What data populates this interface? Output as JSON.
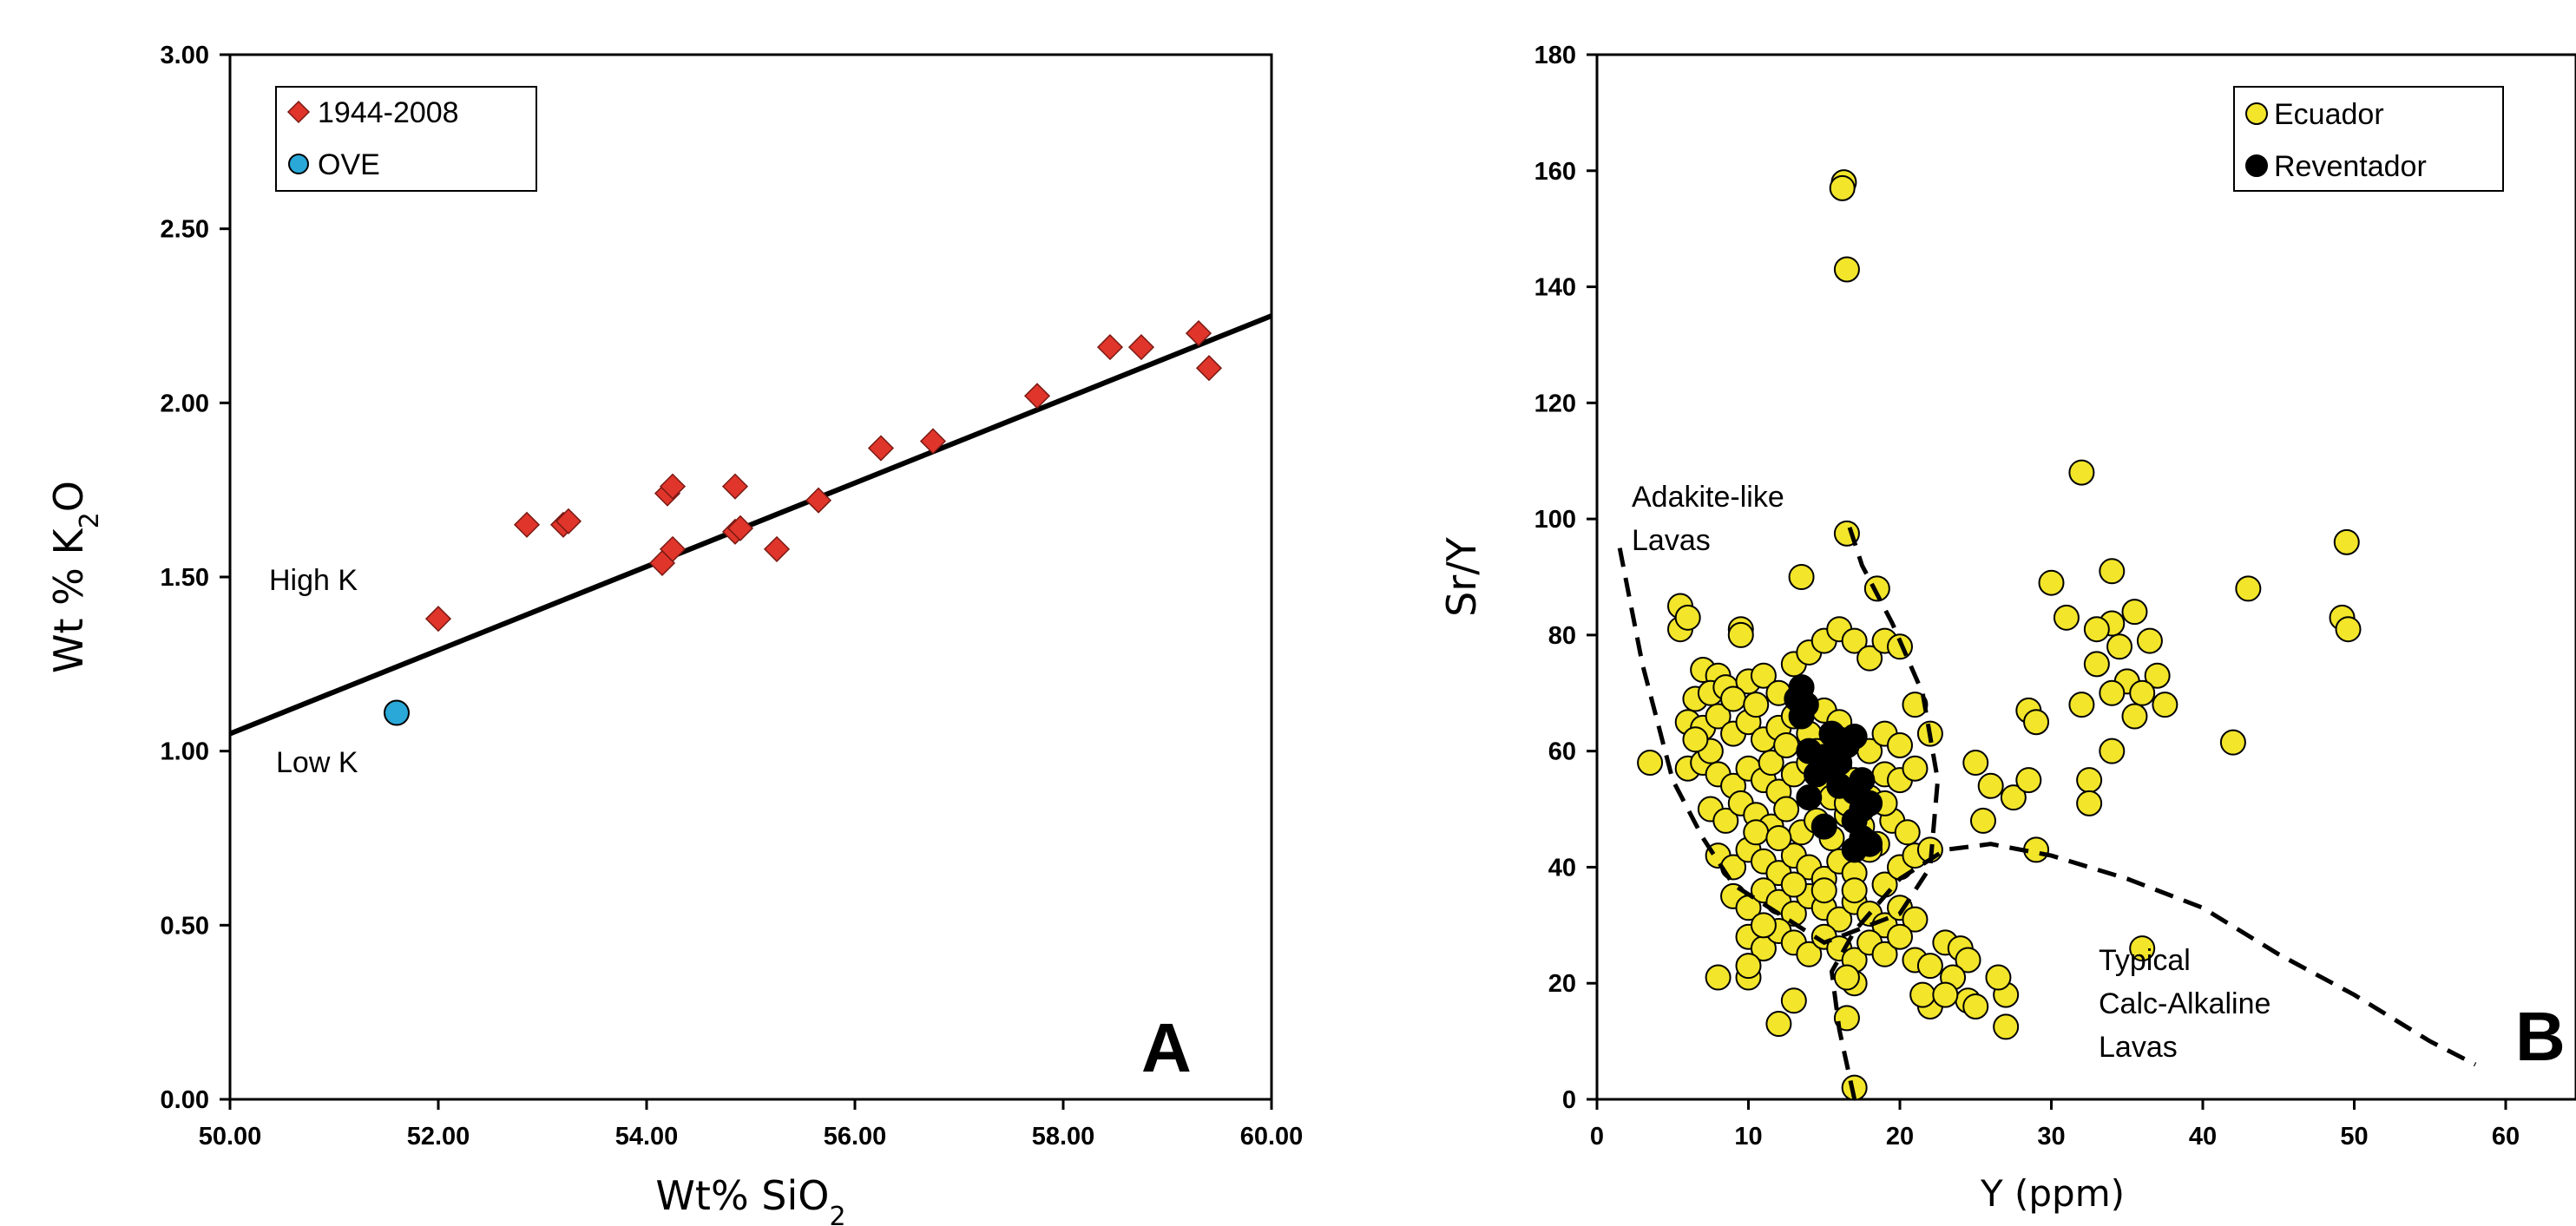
{
  "chart_data": [
    {
      "type": "scatter",
      "panel_label": "A",
      "xlabel": "Wt% SiO",
      "xlabel_sub": "2",
      "ylabel_prefix": "Wt % K",
      "ylabel_sub": "2",
      "ylabel_suffix": "O",
      "xlim": [
        50,
        60
      ],
      "ylim": [
        0,
        3
      ],
      "x_ticks": [
        "50.00",
        "52.00",
        "54.00",
        "56.00",
        "58.00",
        "60.00"
      ],
      "y_ticks": [
        "0.00",
        "0.50",
        "1.00",
        "1.50",
        "2.00",
        "2.50",
        "3.00"
      ],
      "grid": false,
      "legend_position": "top-left",
      "annotations": [
        "High K",
        "Low K"
      ],
      "divider_line": {
        "x": [
          50,
          60
        ],
        "y": [
          1.05,
          2.25
        ]
      },
      "series": [
        {
          "name": "1944-2008",
          "marker": "diamond",
          "color": "#e0352b",
          "points": [
            [
              52.0,
              1.38
            ],
            [
              52.85,
              1.65
            ],
            [
              53.2,
              1.65
            ],
            [
              53.25,
              1.66
            ],
            [
              54.15,
              1.54
            ],
            [
              54.2,
              1.74
            ],
            [
              54.25,
              1.58
            ],
            [
              54.25,
              1.76
            ],
            [
              54.85,
              1.76
            ],
            [
              54.85,
              1.63
            ],
            [
              54.9,
              1.64
            ],
            [
              55.25,
              1.58
            ],
            [
              55.65,
              1.72
            ],
            [
              56.25,
              1.87
            ],
            [
              56.75,
              1.89
            ],
            [
              57.75,
              2.02
            ],
            [
              58.45,
              2.16
            ],
            [
              58.75,
              2.16
            ],
            [
              59.3,
              2.2
            ],
            [
              59.4,
              2.1
            ]
          ]
        },
        {
          "name": "OVE",
          "marker": "circle",
          "color": "#2aa8d8",
          "points": [
            [
              51.6,
              1.11
            ]
          ]
        }
      ]
    },
    {
      "type": "scatter",
      "panel_label": "B",
      "xlabel": "Y (ppm)",
      "ylabel": "Sr/Y",
      "xlim": [
        0,
        60
      ],
      "ylim": [
        0,
        180
      ],
      "x_ticks": [
        "0",
        "10",
        "20",
        "30",
        "40",
        "50",
        "60"
      ],
      "y_ticks": [
        "0",
        "20",
        "40",
        "60",
        "80",
        "100",
        "120",
        "140",
        "160",
        "180"
      ],
      "grid": false,
      "legend_position": "top-right",
      "field_labels": {
        "adakite": [
          "Adakite-like",
          "Lavas"
        ],
        "calc_alkaline": [
          "Typical",
          "Calc-Alkaline",
          "Lavas"
        ]
      },
      "adakite_boundary": [
        [
          1.5,
          95
        ],
        [
          3,
          75
        ],
        [
          5,
          55
        ],
        [
          7,
          45
        ],
        [
          9,
          37
        ],
        [
          12,
          32
        ],
        [
          15,
          27
        ],
        [
          17,
          29
        ],
        [
          20,
          32
        ],
        [
          22,
          40
        ],
        [
          22.5,
          55
        ],
        [
          21.5,
          70
        ],
        [
          19.5,
          82
        ],
        [
          17.5,
          92
        ],
        [
          16.5,
          100
        ]
      ],
      "calc_alkaline_boundary": [
        [
          17,
          0
        ],
        [
          16,
          12
        ],
        [
          15.5,
          22
        ],
        [
          17,
          29
        ],
        [
          20,
          38
        ],
        [
          23,
          43
        ],
        [
          26,
          44
        ],
        [
          30,
          42
        ],
        [
          35,
          38
        ],
        [
          40,
          33
        ],
        [
          45,
          25
        ],
        [
          50,
          18
        ],
        [
          55,
          10
        ],
        [
          58,
          6
        ]
      ],
      "series": [
        {
          "name": "Ecuador",
          "marker": "circle",
          "color": "#f2e52a",
          "points": [
            [
              16.3,
              158
            ],
            [
              16.2,
              157
            ],
            [
              16.5,
              143
            ],
            [
              32,
              108
            ],
            [
              49.5,
              96
            ],
            [
              16.5,
              97.5
            ],
            [
              13.5,
              90
            ],
            [
              30,
              89
            ],
            [
              34,
              91
            ],
            [
              43,
              88
            ],
            [
              18.5,
              88
            ],
            [
              49.2,
              83
            ],
            [
              49.6,
              81
            ],
            [
              31,
              83
            ],
            [
              34,
              82
            ],
            [
              33,
              81
            ],
            [
              35.5,
              84
            ],
            [
              34.5,
              78
            ],
            [
              36.5,
              79
            ],
            [
              33,
              75
            ],
            [
              35,
              72
            ],
            [
              37,
              73
            ],
            [
              34,
              70
            ],
            [
              36,
              70
            ],
            [
              37.5,
              68
            ],
            [
              32,
              68
            ],
            [
              35.5,
              66
            ],
            [
              34,
              60
            ],
            [
              42,
              61.5
            ],
            [
              32.5,
              55
            ],
            [
              32.5,
              51
            ],
            [
              28.5,
              67
            ],
            [
              29,
              65
            ],
            [
              27.5,
              52
            ],
            [
              28.5,
              55
            ],
            [
              25,
              58
            ],
            [
              25.5,
              48
            ],
            [
              26,
              54
            ],
            [
              29,
              43
            ],
            [
              36,
              26
            ],
            [
              3.5,
              58
            ],
            [
              5.5,
              85
            ],
            [
              5.5,
              81
            ],
            [
              6,
              83
            ],
            [
              9.5,
              81
            ],
            [
              9.5,
              80
            ],
            [
              7,
              74
            ],
            [
              8,
              73
            ],
            [
              6.5,
              69
            ],
            [
              7.5,
              70
            ],
            [
              8.5,
              71
            ],
            [
              10,
              72
            ],
            [
              11,
              73
            ],
            [
              12,
              70
            ],
            [
              13,
              75
            ],
            [
              14,
              77
            ],
            [
              15,
              79
            ],
            [
              16,
              81
            ],
            [
              17,
              79
            ],
            [
              18,
              76
            ],
            [
              19,
              79
            ],
            [
              20,
              78
            ],
            [
              6,
              65
            ],
            [
              7,
              64
            ],
            [
              8,
              66
            ],
            [
              9,
              63
            ],
            [
              10,
              65
            ],
            [
              11,
              62
            ],
            [
              12,
              64
            ],
            [
              13,
              66
            ],
            [
              14,
              63
            ],
            [
              15,
              67
            ],
            [
              16,
              65
            ],
            [
              17,
              62
            ],
            [
              18,
              60
            ],
            [
              19,
              63
            ],
            [
              20,
              61
            ],
            [
              21,
              68
            ],
            [
              22,
              63
            ],
            [
              6,
              57
            ],
            [
              7,
              58
            ],
            [
              8,
              56
            ],
            [
              9,
              54
            ],
            [
              10,
              57
            ],
            [
              11,
              55
            ],
            [
              12,
              53
            ],
            [
              13,
              56
            ],
            [
              14,
              58
            ],
            [
              15,
              54
            ],
            [
              16,
              57
            ],
            [
              17,
              55
            ],
            [
              18,
              52
            ],
            [
              19,
              56
            ],
            [
              20,
              55
            ],
            [
              21,
              57
            ],
            [
              7.5,
              50
            ],
            [
              8.5,
              48
            ],
            [
              9.5,
              51
            ],
            [
              10.5,
              49
            ],
            [
              11.5,
              47
            ],
            [
              12.5,
              50
            ],
            [
              13.5,
              46
            ],
            [
              14.5,
              48
            ],
            [
              15.5,
              45
            ],
            [
              16.5,
              49
            ],
            [
              17.5,
              47
            ],
            [
              18.5,
              44
            ],
            [
              19.5,
              48
            ],
            [
              20.5,
              46
            ],
            [
              8,
              42
            ],
            [
              9,
              40
            ],
            [
              10,
              43
            ],
            [
              11,
              41
            ],
            [
              12,
              39
            ],
            [
              13,
              42
            ],
            [
              14,
              40
            ],
            [
              15,
              38
            ],
            [
              16,
              41
            ],
            [
              17,
              39
            ],
            [
              18,
              43
            ],
            [
              19,
              37
            ],
            [
              20,
              40
            ],
            [
              21,
              42
            ],
            [
              22,
              43
            ],
            [
              9,
              35
            ],
            [
              10,
              33
            ],
            [
              11,
              36
            ],
            [
              12,
              34
            ],
            [
              13,
              32
            ],
            [
              14,
              35
            ],
            [
              15,
              33
            ],
            [
              16,
              31
            ],
            [
              17,
              34
            ],
            [
              18,
              32
            ],
            [
              19,
              30
            ],
            [
              20,
              33
            ],
            [
              21,
              31
            ],
            [
              10,
              28
            ],
            [
              11,
              26
            ],
            [
              12,
              29
            ],
            [
              13,
              27
            ],
            [
              14,
              25
            ],
            [
              15,
              28
            ],
            [
              16,
              26
            ],
            [
              17,
              24
            ],
            [
              18,
              27
            ],
            [
              19,
              25
            ],
            [
              20,
              28
            ],
            [
              21,
              24
            ],
            [
              22,
              23
            ],
            [
              23,
              27
            ],
            [
              24,
              26
            ],
            [
              24.5,
              24
            ],
            [
              23.5,
              21
            ],
            [
              22,
              16
            ],
            [
              21.5,
              18
            ],
            [
              24.5,
              17
            ],
            [
              25,
              16
            ],
            [
              27,
              18
            ],
            [
              26.5,
              21
            ],
            [
              27,
              12.5
            ],
            [
              23,
              18
            ],
            [
              8,
              21
            ],
            [
              10,
              21
            ],
            [
              10,
              23
            ],
            [
              12,
              13
            ],
            [
              13,
              17
            ],
            [
              17,
              20
            ],
            [
              16.5,
              21
            ],
            [
              16.5,
              14
            ],
            [
              17,
              2
            ],
            [
              7.5,
              60
            ],
            [
              6.5,
              62
            ],
            [
              9,
              69
            ],
            [
              10.5,
              68
            ],
            [
              11.5,
              58
            ],
            [
              12.5,
              61
            ],
            [
              14.5,
              60
            ],
            [
              15.5,
              52
            ],
            [
              16.5,
              51
            ],
            [
              19,
              51
            ],
            [
              10.5,
              46
            ],
            [
              12,
              45
            ],
            [
              13,
              37
            ],
            [
              15,
              36
            ],
            [
              11,
              30
            ],
            [
              17,
              36
            ]
          ]
        },
        {
          "name": "Reventador",
          "marker": "circle",
          "color": "#000000",
          "points": [
            [
              13.5,
              71
            ],
            [
              13.2,
              69
            ],
            [
              13.8,
              68
            ],
            [
              13.5,
              66
            ],
            [
              15.5,
              63
            ],
            [
              16,
              62
            ],
            [
              17,
              62.5
            ],
            [
              16.5,
              61
            ],
            [
              14,
              60
            ],
            [
              15,
              59
            ],
            [
              16,
              58
            ],
            [
              15.5,
              57
            ],
            [
              14.5,
              56
            ],
            [
              17.5,
              55
            ],
            [
              16,
              54
            ],
            [
              17,
              53
            ],
            [
              18,
              51
            ],
            [
              14,
              52
            ],
            [
              17.5,
              50
            ],
            [
              17,
              48
            ],
            [
              15,
              47
            ],
            [
              17.5,
              45
            ],
            [
              18,
              44
            ],
            [
              17,
              43
            ]
          ]
        }
      ]
    }
  ]
}
